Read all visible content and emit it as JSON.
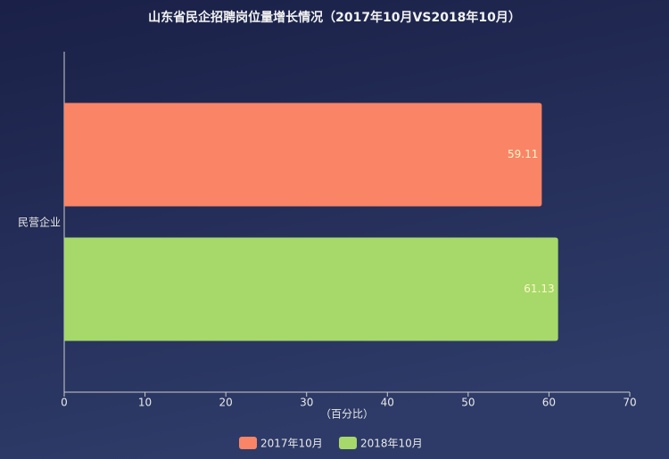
{
  "chart_data": {
    "type": "bar",
    "orientation": "horizontal",
    "title": "山东省民企招聘岗位量增长情况（2017年10月VS2018年10月）",
    "x_label": "（百分比）",
    "categories": [
      "民营企业"
    ],
    "series": [
      {
        "name": "2017年10月",
        "color": "#fa8466",
        "values": [
          59.11
        ]
      },
      {
        "name": "2018年10月",
        "color": "#a6d96a",
        "values": [
          61.13
        ]
      }
    ],
    "xlim": [
      0,
      70
    ],
    "xticks": [
      0,
      10,
      20,
      30,
      40,
      50,
      60,
      70
    ],
    "legend": "bottom",
    "grid": false
  }
}
